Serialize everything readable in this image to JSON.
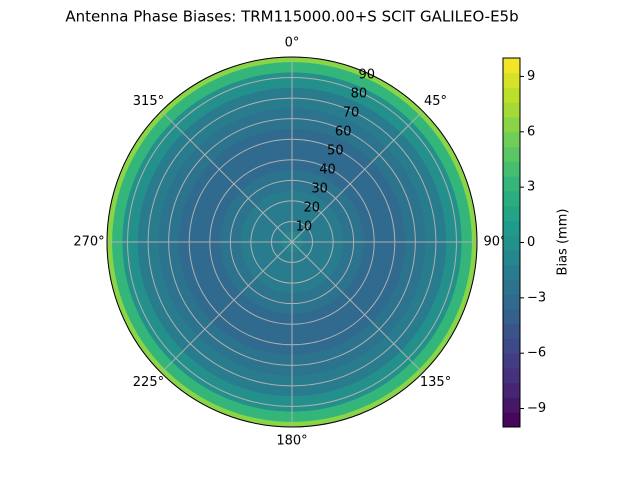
{
  "chart_data": {
    "type": "polar-contour",
    "title": "Antenna Phase Biases: TRM115000.00+S  SCIT GALILEO-E5b",
    "zenith": [
      0,
      10,
      20,
      30,
      40,
      50,
      60,
      70,
      80,
      85,
      90
    ],
    "values": [
      -1,
      -1.5,
      -2,
      -2.5,
      -3,
      -3,
      -2.5,
      -2,
      0,
      3,
      6
    ],
    "rlim": [
      0,
      90
    ],
    "rticks": [
      10,
      20,
      30,
      40,
      50,
      60,
      70,
      80,
      90
    ],
    "theta_ticks": [
      {
        "value": 0,
        "label": "0°"
      },
      {
        "value": 45,
        "label": "45°"
      },
      {
        "value": 90,
        "label": "90°"
      },
      {
        "value": 135,
        "label": "135°"
      },
      {
        "value": 180,
        "label": "180°"
      },
      {
        "value": 225,
        "label": "225°"
      },
      {
        "value": 270,
        "label": "270°"
      },
      {
        "value": 315,
        "label": "315°"
      }
    ],
    "colormap": "viridis",
    "grid": true,
    "colorbar": {
      "label": "Bias (mm)",
      "lim": [
        -10,
        10
      ],
      "ticks": [
        {
          "value": -9,
          "label": "−9"
        },
        {
          "value": -6,
          "label": "−6"
        },
        {
          "value": -3,
          "label": "−3"
        },
        0,
        3,
        6,
        9
      ]
    }
  }
}
